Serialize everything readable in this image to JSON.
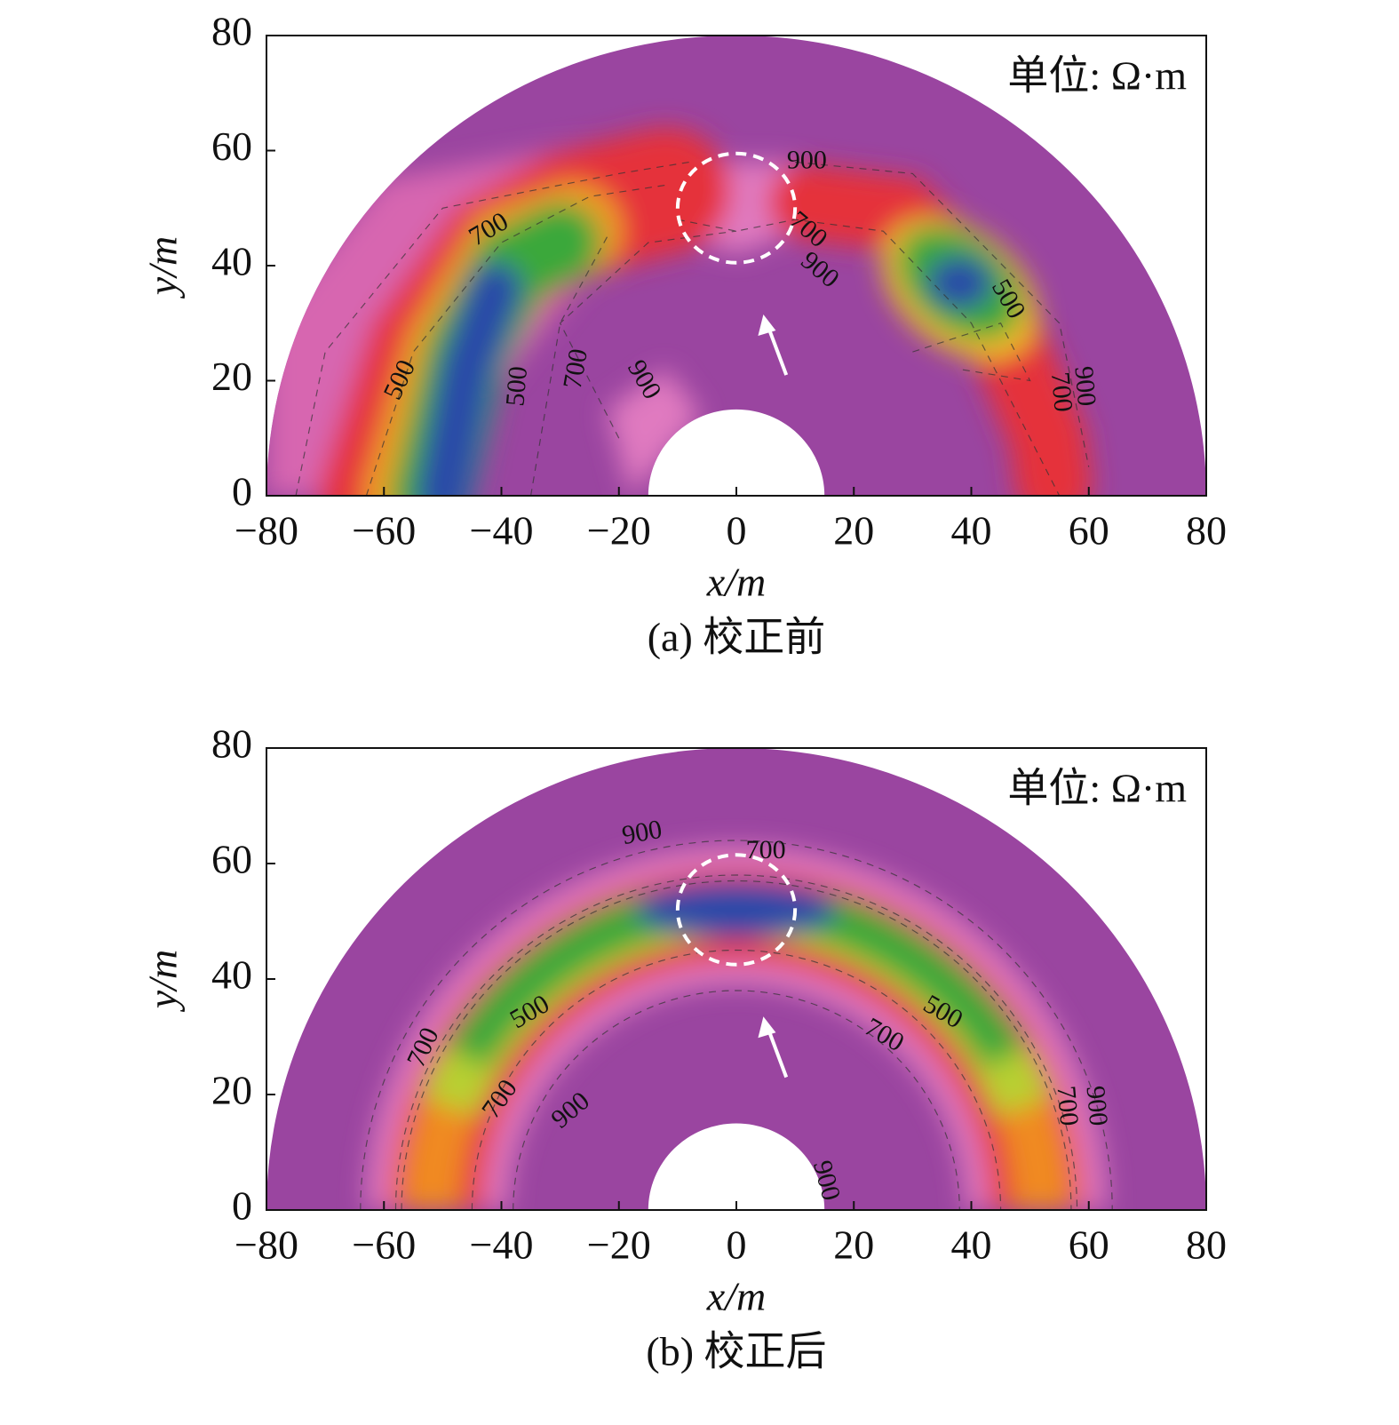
{
  "chart_data": [
    {
      "type": "contour",
      "annotation": "单位: Ω·m",
      "caption": "(a) 校正前",
      "xlabel": "x/m",
      "ylabel": "y/m",
      "xlim": [
        -80,
        80
      ],
      "ylim": [
        0,
        80
      ],
      "xticks": [
        {
          "value": -80,
          "label": "−80"
        },
        {
          "value": -60,
          "label": "−60"
        },
        {
          "value": -40,
          "label": "−40"
        },
        {
          "value": -20,
          "label": "−20"
        },
        0,
        20,
        40,
        60,
        80
      ],
      "yticks": [
        0,
        20,
        40,
        60,
        80
      ],
      "contour_labels": [
        900,
        700,
        700,
        900,
        500,
        500,
        500,
        700,
        900,
        700,
        900
      ]
    },
    {
      "type": "contour",
      "annotation": "单位: Ω·m",
      "caption": "(b) 校正后",
      "xlabel": "x/m",
      "ylabel": "y/m",
      "xlim": [
        -80,
        80
      ],
      "ylim": [
        0,
        80
      ],
      "xticks": [
        {
          "value": -80,
          "label": "−80"
        },
        {
          "value": -60,
          "label": "−60"
        },
        {
          "value": -40,
          "label": "−40"
        },
        {
          "value": -20,
          "label": "−20"
        },
        0,
        20,
        40,
        60,
        80
      ],
      "yticks": [
        0,
        20,
        40,
        60,
        80
      ],
      "contour_labels": [
        900,
        700,
        500,
        500,
        700,
        700,
        700,
        900,
        700,
        900,
        900
      ]
    }
  ]
}
